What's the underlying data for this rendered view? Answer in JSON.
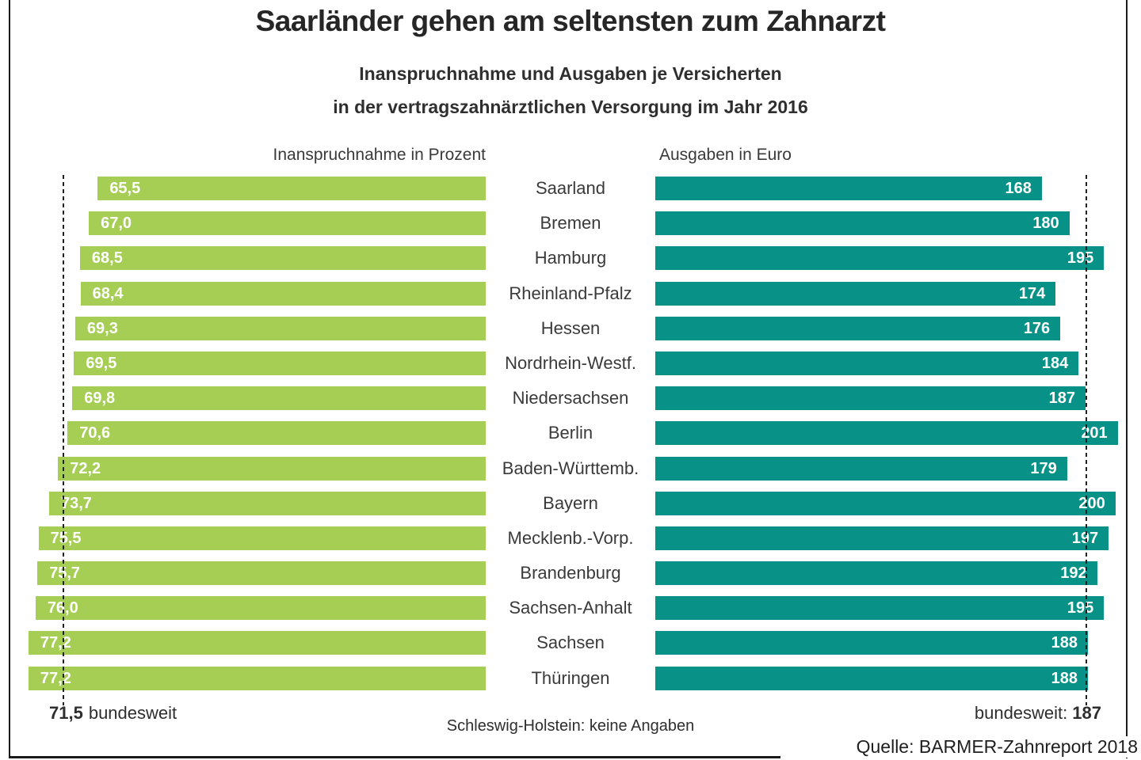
{
  "header": {
    "title": "Saarländer gehen am seltensten zum Zahnarzt",
    "subtitle_line1": "Inanspruchnahme und Ausgaben je Versicherten",
    "subtitle_line2": "in der vertragszahnärztlichen Versorgung im Jahr 2016"
  },
  "left_chart": {
    "header": "Inanspruchnahme in Prozent"
  },
  "right_chart": {
    "header": "Ausgaben in Euro"
  },
  "footer": {
    "left_value": "71,5",
    "left_label": "bundesweit",
    "note": "Schleswig-Holstein: keine Angaben",
    "right_label": "bundesweit:",
    "right_value": "187",
    "source": "Quelle: BARMER-Zahnreport 2018"
  },
  "chart_data": {
    "type": "bar",
    "orientation": "horizontal-butterfly",
    "title": "Saarländer gehen am seltensten zum Zahnarzt",
    "subtitle": "Inanspruchnahme und Ausgaben je Versicherten in der vertragszahnärztlichen Versorgung im Jahr 2016",
    "categories": [
      "Saarland",
      "Bremen",
      "Hamburg",
      "Rheinland-Pfalz",
      "Hessen",
      "Nordrhein-Westf.",
      "Niedersachsen",
      "Berlin",
      "Baden-Württemb.",
      "Bayern",
      "Mecklenb.-Vorp.",
      "Brandenburg",
      "Sachsen-Anhalt",
      "Sachsen",
      "Thüringen"
    ],
    "series": [
      {
        "name": "Inanspruchnahme in Prozent",
        "values": [
          65.5,
          67.0,
          68.5,
          68.4,
          69.3,
          69.5,
          69.8,
          70.6,
          72.2,
          73.7,
          75.5,
          75.7,
          76.0,
          77.2,
          77.2
        ],
        "national_average": 71.5,
        "color": "#a6ce55",
        "value_format": "german-decimal-comma"
      },
      {
        "name": "Ausgaben in Euro",
        "values": [
          168,
          180,
          195,
          174,
          176,
          184,
          187,
          201,
          179,
          200,
          197,
          192,
          195,
          188,
          188
        ],
        "national_average": 187,
        "color": "#089287",
        "value_format": "integer"
      }
    ],
    "note": "Schleswig-Holstein: keine Angaben",
    "source": "Quelle: BARMER-Zahnreport 2018",
    "axis_baseline": 0,
    "grid": false,
    "legend_position": "column-headers"
  }
}
